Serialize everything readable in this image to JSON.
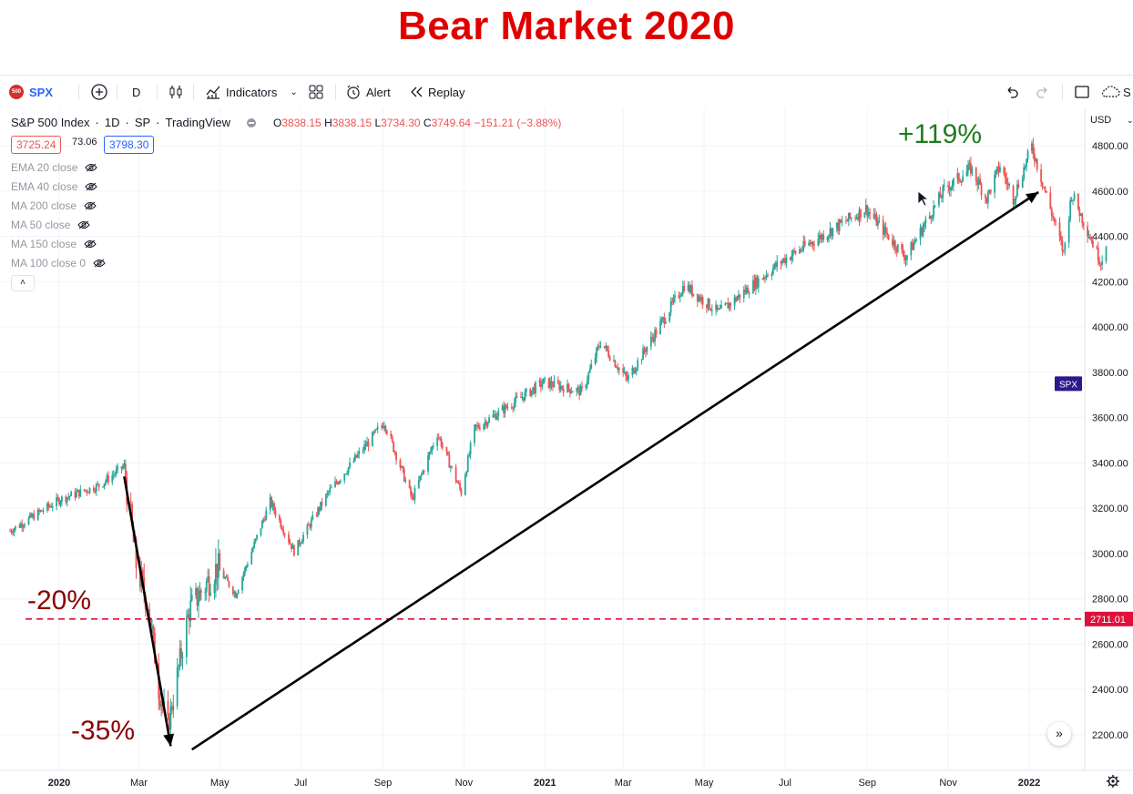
{
  "page_title": "Bear Market 2020",
  "toolbar": {
    "symbol": "SPX",
    "symbol_badge": "500",
    "interval": "D",
    "indicators_label": "Indicators",
    "alert_label": "Alert",
    "replay_label": "Replay",
    "cut_label": "S"
  },
  "legend": {
    "name": "S&P 500 Index",
    "interval": "1D",
    "exchange": "SP",
    "source": "TradingView",
    "o_label": "O",
    "o": "3838.15",
    "h_label": "H",
    "h": "3838.15",
    "l_label": "L",
    "l": "3734.30",
    "c_label": "C",
    "c": "3749.64",
    "change": "−151.21 (−3.88%)",
    "bid": "3725.24",
    "spread": "73.06",
    "ask": "3798.30",
    "indicators": [
      "EMA 20 close",
      "EMA 40 close",
      "MA 200 close",
      "MA 50 close",
      "MA 150 close",
      "MA 100 close 0"
    ],
    "collapse": "˄"
  },
  "colors": {
    "up": "#26a69a",
    "down": "#ef5350",
    "title": "#e00000",
    "annotation_red": "#8b0000",
    "annotation_green": "#1e7b1e",
    "hline": "#e0103a",
    "arrow": "#000000",
    "symbol_tag": "#2a1a8c"
  },
  "chart_data": {
    "type": "candlestick",
    "title": "S&P 500 Index · 1D · SP",
    "currency_label": "USD",
    "ylim": [
      2100,
      4900
    ],
    "y_ticks": [
      "4800.00",
      "4600.00",
      "4400.00",
      "4200.00",
      "4000.00",
      "3800.00",
      "3600.00",
      "3400.00",
      "3200.00",
      "3000.00",
      "2800.00",
      "2600.00",
      "2400.00",
      "2200.00"
    ],
    "x_ticks": [
      {
        "label": "2020",
        "date": "2020-01-01",
        "bold": true
      },
      {
        "label": "Mar",
        "date": "2020-03-01"
      },
      {
        "label": "May",
        "date": "2020-05-01"
      },
      {
        "label": "Jul",
        "date": "2020-07-01"
      },
      {
        "label": "Sep",
        "date": "2020-09-01"
      },
      {
        "label": "Nov",
        "date": "2020-11-01"
      },
      {
        "label": "2021",
        "date": "2021-01-01",
        "bold": true
      },
      {
        "label": "Mar",
        "date": "2021-03-01"
      },
      {
        "label": "May",
        "date": "2021-05-01"
      },
      {
        "label": "Jul",
        "date": "2021-07-01"
      },
      {
        "label": "Sep",
        "date": "2021-09-01"
      },
      {
        "label": "Nov",
        "date": "2021-11-01"
      },
      {
        "label": "2022",
        "date": "2022-01-01",
        "bold": true
      }
    ],
    "x_range": [
      "2019-11-25",
      "2022-02-28"
    ],
    "price_path": [
      [
        "2019-11-25",
        3100
      ],
      [
        "2020-01-02",
        3240
      ],
      [
        "2020-01-31",
        3300
      ],
      [
        "2020-02-19",
        3386
      ],
      [
        "2020-02-28",
        2950
      ],
      [
        "2020-03-09",
        2750
      ],
      [
        "2020-03-16",
        2400
      ],
      [
        "2020-03-23",
        2237
      ],
      [
        "2020-04-08",
        2750
      ],
      [
        "2020-04-29",
        2940
      ],
      [
        "2020-05-13",
        2820
      ],
      [
        "2020-06-08",
        3230
      ],
      [
        "2020-06-26",
        3010
      ],
      [
        "2020-07-22",
        3270
      ],
      [
        "2020-09-02",
        3580
      ],
      [
        "2020-09-23",
        3240
      ],
      [
        "2020-10-12",
        3530
      ],
      [
        "2020-10-30",
        3270
      ],
      [
        "2020-11-09",
        3550
      ],
      [
        "2020-12-31",
        3756
      ],
      [
        "2021-01-29",
        3714
      ],
      [
        "2021-02-12",
        3934
      ],
      [
        "2021-03-04",
        3768
      ],
      [
        "2021-04-16",
        4185
      ],
      [
        "2021-05-12",
        4063
      ],
      [
        "2021-06-30",
        4297
      ],
      [
        "2021-08-31",
        4522
      ],
      [
        "2021-09-30",
        4307
      ],
      [
        "2021-10-29",
        4605
      ],
      [
        "2021-11-18",
        4700
      ],
      [
        "2021-11-30",
        4567
      ],
      [
        "2021-12-10",
        4712
      ],
      [
        "2021-12-20",
        4568
      ],
      [
        "2022-01-03",
        4796
      ],
      [
        "2022-01-27",
        4326
      ],
      [
        "2022-02-02",
        4589
      ],
      [
        "2022-02-24",
        4288
      ],
      [
        "2022-02-28",
        4374
      ]
    ],
    "horizontal_line": {
      "value": 2711.01,
      "label": "2711.01"
    },
    "symbol_tag": {
      "label": "SPX",
      "value": 3749.64
    },
    "annotations": [
      {
        "text": "-20%"
      },
      {
        "text": "-35%"
      },
      {
        "text": "+119%"
      }
    ],
    "arrows": [
      {
        "from": [
          "2020-02-19",
          3340
        ],
        "to": [
          "2020-03-25",
          2150
        ]
      },
      {
        "from": [
          "2020-04-10",
          2135
        ],
        "to": [
          "2022-01-08",
          4595
        ]
      }
    ]
  }
}
